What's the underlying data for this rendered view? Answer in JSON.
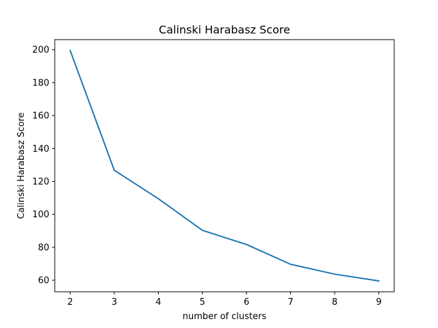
{
  "chart_data": {
    "type": "line",
    "title": "Calinski Harabasz Score",
    "xlabel": "number of clusters",
    "ylabel": "Calinski Harabasz Score",
    "x": [
      2,
      3,
      4,
      5,
      6,
      7,
      8,
      9
    ],
    "series": [
      {
        "values": [
          199.5,
          126.8,
          109.5,
          90.3,
          81.7,
          69.7,
          63.7,
          59.6
        ],
        "color": "#1f77b4"
      }
    ],
    "xlim": [
      1.65,
      9.35
    ],
    "ylim": [
      52.99,
      206.1
    ],
    "xticks": [
      2,
      3,
      4,
      5,
      6,
      7,
      8,
      9
    ],
    "yticks": [
      60,
      80,
      100,
      120,
      140,
      160,
      180,
      200
    ],
    "grid": false,
    "legend": false
  }
}
